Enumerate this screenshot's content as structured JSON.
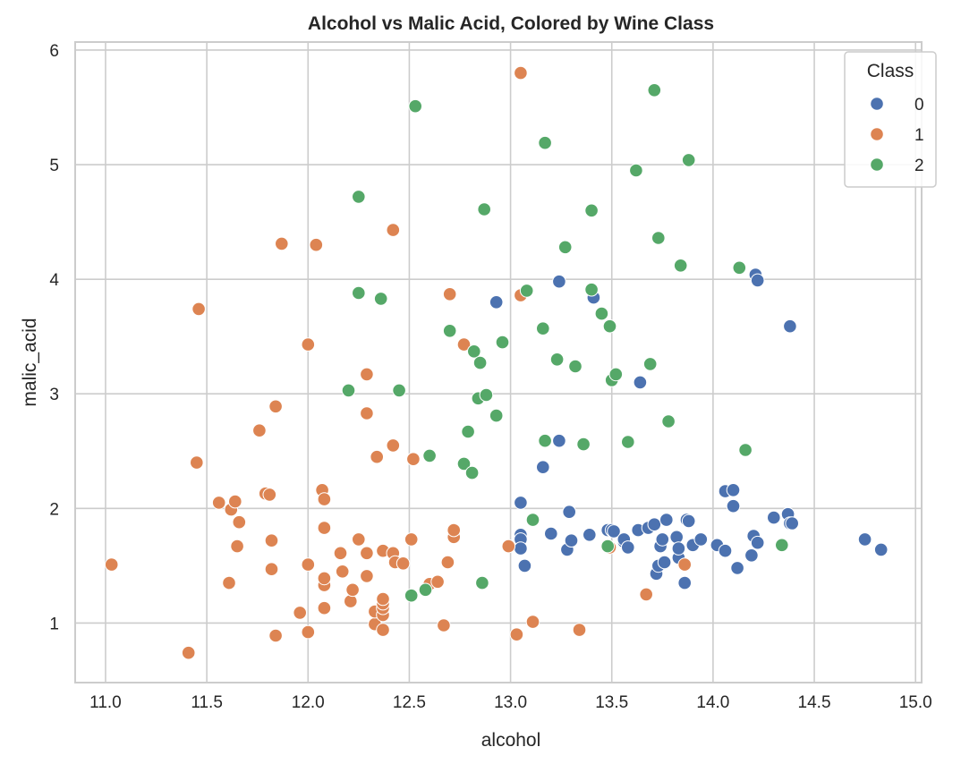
{
  "chart_data": {
    "type": "scatter",
    "title": "Alcohol vs Malic Acid, Colored by Wine Class",
    "xlabel": "alcohol",
    "ylabel": "malic_acid",
    "xlim": [
      10.85,
      15.03
    ],
    "ylim": [
      0.48,
      6.07
    ],
    "xticks": [
      "11.0",
      "11.5",
      "12.0",
      "12.5",
      "13.0",
      "13.5",
      "14.0",
      "14.5",
      "15.0"
    ],
    "yticks": [
      "1",
      "2",
      "3",
      "4",
      "5",
      "6"
    ],
    "grid": true,
    "legend": {
      "title": "Class",
      "placement": "top-right"
    },
    "series": [
      {
        "name": "0",
        "color": "#4c72b0",
        "points": [
          [
            12.93,
            3.8
          ],
          [
            13.05,
            2.05
          ],
          [
            13.05,
            1.77
          ],
          [
            13.05,
            1.73
          ],
          [
            13.05,
            1.65
          ],
          [
            13.07,
            1.5
          ],
          [
            13.16,
            2.36
          ],
          [
            13.2,
            1.78
          ],
          [
            13.24,
            3.98
          ],
          [
            13.24,
            2.59
          ],
          [
            13.28,
            1.64
          ],
          [
            13.29,
            1.97
          ],
          [
            13.3,
            1.72
          ],
          [
            13.39,
            1.77
          ],
          [
            13.41,
            3.84
          ],
          [
            13.48,
            1.81
          ],
          [
            13.5,
            1.81
          ],
          [
            13.51,
            1.8
          ],
          [
            13.56,
            1.71
          ],
          [
            13.56,
            1.73
          ],
          [
            13.58,
            1.66
          ],
          [
            13.63,
            1.81
          ],
          [
            13.64,
            3.1
          ],
          [
            13.68,
            1.83
          ],
          [
            13.71,
            1.86
          ],
          [
            13.72,
            1.43
          ],
          [
            13.73,
            1.5
          ],
          [
            13.74,
            1.67
          ],
          [
            13.75,
            1.73
          ],
          [
            13.76,
            1.53
          ],
          [
            13.77,
            1.9
          ],
          [
            13.82,
            1.75
          ],
          [
            13.83,
            1.57
          ],
          [
            13.83,
            1.65
          ],
          [
            13.86,
            1.35
          ],
          [
            13.87,
            1.9
          ],
          [
            13.88,
            1.89
          ],
          [
            13.9,
            1.68
          ],
          [
            13.94,
            1.73
          ],
          [
            14.02,
            1.68
          ],
          [
            14.06,
            1.63
          ],
          [
            14.06,
            2.15
          ],
          [
            14.1,
            2.02
          ],
          [
            14.1,
            2.16
          ],
          [
            14.12,
            1.48
          ],
          [
            14.19,
            1.59
          ],
          [
            14.2,
            1.76
          ],
          [
            14.21,
            4.04
          ],
          [
            14.22,
            1.7
          ],
          [
            14.22,
            3.99
          ],
          [
            14.3,
            1.92
          ],
          [
            14.37,
            1.95
          ],
          [
            14.38,
            1.87
          ],
          [
            14.38,
            3.59
          ],
          [
            14.39,
            1.87
          ],
          [
            14.75,
            1.73
          ],
          [
            14.83,
            1.64
          ]
        ]
      },
      {
        "name": "1",
        "color": "#dd8452",
        "points": [
          [
            11.03,
            1.51
          ],
          [
            11.41,
            0.74
          ],
          [
            11.45,
            2.4
          ],
          [
            11.46,
            3.74
          ],
          [
            11.56,
            2.05
          ],
          [
            11.61,
            1.35
          ],
          [
            11.62,
            1.99
          ],
          [
            11.64,
            2.06
          ],
          [
            11.65,
            1.67
          ],
          [
            11.66,
            1.88
          ],
          [
            11.76,
            2.68
          ],
          [
            11.79,
            2.13
          ],
          [
            11.81,
            2.12
          ],
          [
            11.82,
            1.47
          ],
          [
            11.82,
            1.72
          ],
          [
            11.84,
            0.89
          ],
          [
            11.84,
            2.89
          ],
          [
            11.87,
            4.31
          ],
          [
            11.96,
            1.09
          ],
          [
            12.0,
            0.92
          ],
          [
            12.0,
            1.51
          ],
          [
            12.0,
            3.43
          ],
          [
            12.04,
            4.3
          ],
          [
            12.07,
            2.16
          ],
          [
            12.08,
            1.13
          ],
          [
            12.08,
            1.33
          ],
          [
            12.08,
            1.39
          ],
          [
            12.08,
            1.83
          ],
          [
            12.08,
            2.08
          ],
          [
            12.16,
            1.61
          ],
          [
            12.17,
            1.45
          ],
          [
            12.21,
            1.19
          ],
          [
            12.22,
            1.29
          ],
          [
            12.25,
            1.73
          ],
          [
            12.29,
            1.41
          ],
          [
            12.29,
            1.61
          ],
          [
            12.29,
            2.83
          ],
          [
            12.29,
            3.17
          ],
          [
            12.33,
            0.99
          ],
          [
            12.33,
            1.1
          ],
          [
            12.34,
            2.45
          ],
          [
            12.37,
            0.94
          ],
          [
            12.37,
            1.07
          ],
          [
            12.37,
            1.13
          ],
          [
            12.37,
            1.17
          ],
          [
            12.37,
            1.21
          ],
          [
            12.37,
            1.63
          ],
          [
            12.42,
            1.61
          ],
          [
            12.42,
            2.55
          ],
          [
            12.42,
            4.43
          ],
          [
            12.43,
            1.53
          ],
          [
            12.47,
            1.52
          ],
          [
            12.51,
            1.73
          ],
          [
            12.52,
            2.43
          ],
          [
            12.6,
            1.34
          ],
          [
            12.64,
            1.36
          ],
          [
            12.67,
            0.98
          ],
          [
            12.69,
            1.53
          ],
          [
            12.7,
            3.87
          ],
          [
            12.72,
            1.75
          ],
          [
            12.72,
            1.81
          ],
          [
            12.77,
            3.43
          ],
          [
            12.99,
            1.67
          ],
          [
            13.03,
            0.9
          ],
          [
            13.05,
            3.86
          ],
          [
            13.05,
            5.8
          ],
          [
            13.11,
            1.01
          ],
          [
            13.34,
            0.94
          ],
          [
            13.49,
            1.66
          ],
          [
            13.67,
            1.25
          ],
          [
            13.86,
            1.51
          ]
        ]
      },
      {
        "name": "2",
        "color": "#55a868",
        "points": [
          [
            12.2,
            3.03
          ],
          [
            12.25,
            3.88
          ],
          [
            12.25,
            4.72
          ],
          [
            12.36,
            3.83
          ],
          [
            12.45,
            3.03
          ],
          [
            12.51,
            1.24
          ],
          [
            12.53,
            5.51
          ],
          [
            12.58,
            1.29
          ],
          [
            12.6,
            2.46
          ],
          [
            12.7,
            3.55
          ],
          [
            12.77,
            2.39
          ],
          [
            12.79,
            2.67
          ],
          [
            12.81,
            2.31
          ],
          [
            12.82,
            3.37
          ],
          [
            12.84,
            2.96
          ],
          [
            12.85,
            3.27
          ],
          [
            12.86,
            1.35
          ],
          [
            12.87,
            4.61
          ],
          [
            12.88,
            2.99
          ],
          [
            12.93,
            2.81
          ],
          [
            12.96,
            3.45
          ],
          [
            13.08,
            3.9
          ],
          [
            13.11,
            1.9
          ],
          [
            13.16,
            3.57
          ],
          [
            13.17,
            2.59
          ],
          [
            13.17,
            5.19
          ],
          [
            13.23,
            3.3
          ],
          [
            13.27,
            4.28
          ],
          [
            13.32,
            3.24
          ],
          [
            13.36,
            2.56
          ],
          [
            13.4,
            3.91
          ],
          [
            13.4,
            4.6
          ],
          [
            13.45,
            3.7
          ],
          [
            13.48,
            1.67
          ],
          [
            13.49,
            3.59
          ],
          [
            13.5,
            3.12
          ],
          [
            13.52,
            3.17
          ],
          [
            13.58,
            2.58
          ],
          [
            13.62,
            4.95
          ],
          [
            13.69,
            3.26
          ],
          [
            13.71,
            5.65
          ],
          [
            13.73,
            4.36
          ],
          [
            13.78,
            2.76
          ],
          [
            13.84,
            4.12
          ],
          [
            13.88,
            5.04
          ],
          [
            14.13,
            4.1
          ],
          [
            14.16,
            2.51
          ],
          [
            14.34,
            1.68
          ]
        ]
      }
    ]
  }
}
